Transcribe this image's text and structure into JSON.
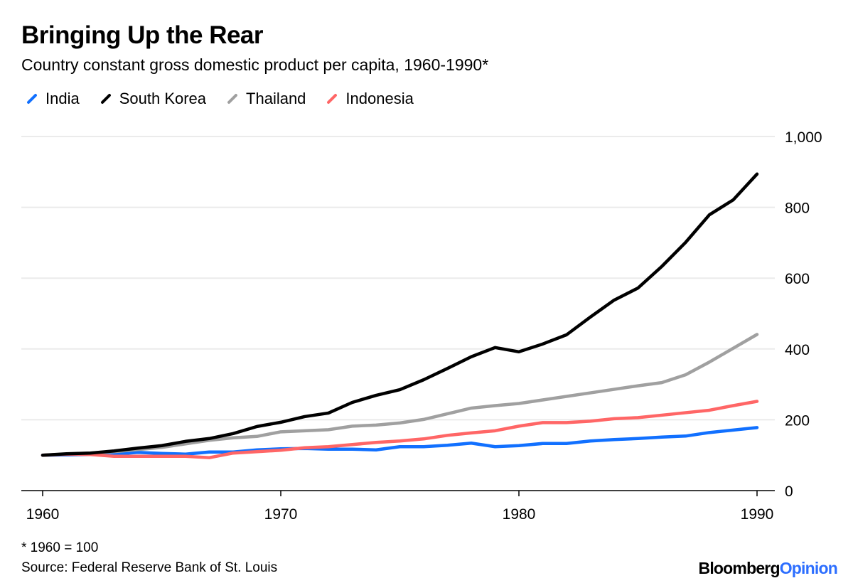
{
  "chart_data": {
    "type": "line",
    "title": "Bringing Up the Rear",
    "subtitle": "Country constant gross domestic product per capita, 1960-1990*",
    "xlabel": "",
    "ylabel": "",
    "xlim": [
      1960,
      1990
    ],
    "ylim": [
      0,
      1000
    ],
    "x_ticks": [
      "1960",
      "1970",
      "1980",
      "1990"
    ],
    "y_ticks": [
      "0",
      "200",
      "400",
      "600",
      "800",
      "1,000"
    ],
    "grid": true,
    "legend_placement": "top-left",
    "x": [
      1960,
      1961,
      1962,
      1963,
      1964,
      1965,
      1966,
      1967,
      1968,
      1969,
      1970,
      1971,
      1972,
      1973,
      1974,
      1975,
      1976,
      1977,
      1978,
      1979,
      1980,
      1981,
      1982,
      1983,
      1984,
      1985,
      1986,
      1987,
      1988,
      1989,
      1990
    ],
    "series": [
      {
        "name": "India",
        "color": "#1170ff",
        "values": [
          100,
          101,
          102,
          103,
          108,
          105,
          103,
          109,
          109,
          115,
          118,
          119,
          117,
          117,
          115,
          124,
          124,
          128,
          134,
          124,
          127,
          133,
          133,
          140,
          144,
          147,
          151,
          154,
          164,
          171,
          178
        ]
      },
      {
        "name": "South Korea",
        "color": "#000000",
        "values": [
          100,
          104,
          106,
          112,
          120,
          127,
          139,
          147,
          161,
          181,
          193,
          209,
          219,
          249,
          269,
          285,
          313,
          345,
          378,
          404,
          392,
          414,
          440,
          490,
          538,
          572,
          633,
          701,
          779,
          821,
          894
        ]
      },
      {
        "name": "Thailand",
        "color": "#a0a0a0",
        "values": [
          100,
          103,
          106,
          110,
          116,
          122,
          132,
          142,
          149,
          153,
          166,
          169,
          172,
          182,
          185,
          191,
          201,
          217,
          233,
          240,
          246,
          256,
          266,
          276,
          286,
          296,
          305,
          327,
          363,
          402,
          441
        ]
      },
      {
        "name": "Indonesia",
        "color": "#ff6666",
        "values": [
          100,
          103,
          102,
          97,
          97,
          97,
          97,
          93,
          106,
          110,
          114,
          121,
          124,
          130,
          136,
          140,
          146,
          156,
          163,
          169,
          182,
          192,
          192,
          196,
          203,
          206,
          213,
          220,
          227,
          240,
          252
        ]
      }
    ]
  },
  "footer": {
    "note": "* 1960 = 100",
    "source": "Source: Federal Reserve Bank of St. Louis",
    "logo_text_1": "Bloomberg",
    "logo_text_2": "Opinion"
  }
}
